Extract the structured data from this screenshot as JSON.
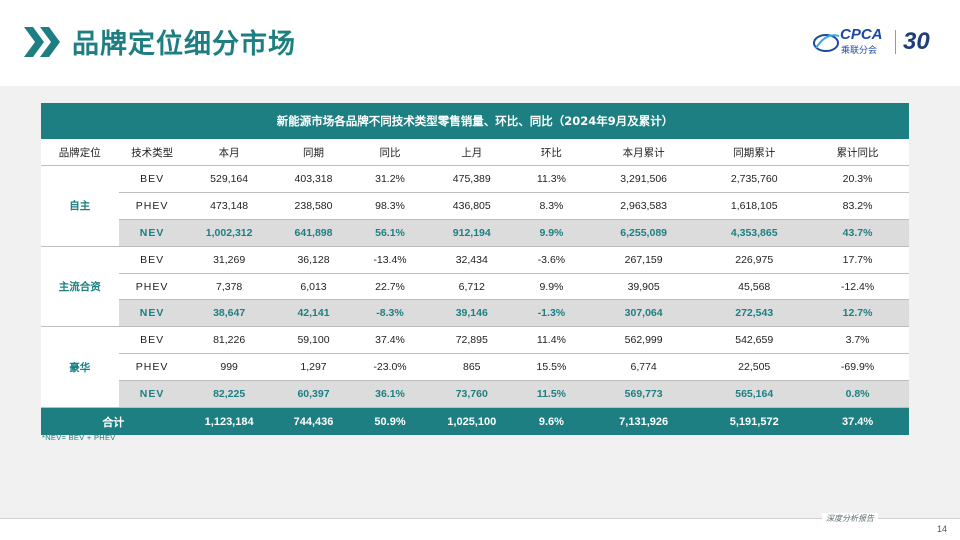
{
  "page": {
    "title": "品牌定位细分市场",
    "page_number": "14",
    "report_label": "深度分析报告",
    "footnote": "*NEV= BEV + PHEV"
  },
  "logo": {
    "brand": "CPCA",
    "sub": "乘联分会",
    "anniversary": "30"
  },
  "table": {
    "caption": "新能源市场各品牌不同技术类型零售销量、环比、同比（2024年9月及累计）",
    "headers": [
      "品牌定位",
      "技术类型",
      "本月",
      "同期",
      "同比",
      "上月",
      "环比",
      "本月累计",
      "同期累计",
      "累计同比"
    ],
    "groups": [
      {
        "name": "自主",
        "rows": [
          {
            "type": "BEV",
            "cells": [
              "529,164",
              "403,318",
              "31.2%",
              "475,389",
              "11.3%",
              "3,291,506",
              "2,735,760",
              "20.3%"
            ]
          },
          {
            "type": "PHEV",
            "cells": [
              "473,148",
              "238,580",
              "98.3%",
              "436,805",
              "8.3%",
              "2,963,583",
              "1,618,105",
              "83.2%"
            ]
          },
          {
            "type": "NEV",
            "cells": [
              "1,002,312",
              "641,898",
              "56.1%",
              "912,194",
              "9.9%",
              "6,255,089",
              "4,353,865",
              "43.7%"
            ]
          }
        ]
      },
      {
        "name": "主流合资",
        "rows": [
          {
            "type": "BEV",
            "cells": [
              "31,269",
              "36,128",
              "-13.4%",
              "32,434",
              "-3.6%",
              "267,159",
              "226,975",
              "17.7%"
            ]
          },
          {
            "type": "PHEV",
            "cells": [
              "7,378",
              "6,013",
              "22.7%",
              "6,712",
              "9.9%",
              "39,905",
              "45,568",
              "-12.4%"
            ]
          },
          {
            "type": "NEV",
            "cells": [
              "38,647",
              "42,141",
              "-8.3%",
              "39,146",
              "-1.3%",
              "307,064",
              "272,543",
              "12.7%"
            ]
          }
        ]
      },
      {
        "name": "豪华",
        "rows": [
          {
            "type": "BEV",
            "cells": [
              "81,226",
              "59,100",
              "37.4%",
              "72,895",
              "11.4%",
              "562,999",
              "542,659",
              "3.7%"
            ]
          },
          {
            "type": "PHEV",
            "cells": [
              "999",
              "1,297",
              "-23.0%",
              "865",
              "15.5%",
              "6,774",
              "22,505",
              "-69.9%"
            ]
          },
          {
            "type": "NEV",
            "cells": [
              "82,225",
              "60,397",
              "36.1%",
              "73,760",
              "11.5%",
              "569,773",
              "565,164",
              "0.8%"
            ]
          }
        ]
      }
    ],
    "total": {
      "label": "合计",
      "cells": [
        "1,123,184",
        "744,436",
        "50.9%",
        "1,025,100",
        "9.6%",
        "7,131,926",
        "5,191,572",
        "37.4%"
      ]
    }
  },
  "colors": {
    "accent": "#1d7f82",
    "nev_row_bg": "#dcdcdc",
    "content_bg": "#f1f1f1"
  }
}
